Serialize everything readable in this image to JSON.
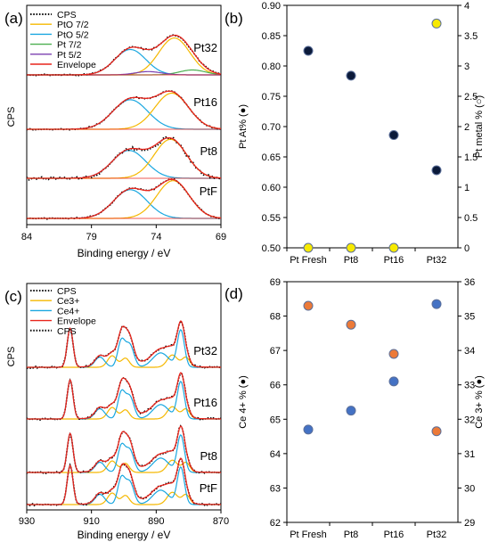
{
  "chart_data": [
    {
      "id": "a",
      "type": "line",
      "panel_label": "(a)",
      "xlabel": "Binding energy / eV",
      "ylabel": "CPS",
      "x_ticks": [
        "84",
        "79",
        "74",
        "69"
      ],
      "x_tick_values": [
        84,
        79,
        74,
        69
      ],
      "xlim": [
        84,
        69
      ],
      "legend": {
        "placement": "top-left",
        "entries": [
          {
            "name": "CPS",
            "color": "#000000",
            "style": "dotted"
          },
          {
            "name": "PtO 7/2",
            "color": "#f5b800",
            "style": "solid"
          },
          {
            "name": "PtO 5/2",
            "color": "#1aa7e0",
            "style": "solid"
          },
          {
            "name": "Pt 7/2",
            "color": "#4caf50",
            "style": "solid"
          },
          {
            "name": "Pt 5/2",
            "color": "#7b3fb0",
            "style": "solid"
          },
          {
            "name": "Envelope",
            "color": "#e8251c",
            "style": "solid"
          }
        ]
      },
      "spectra": [
        {
          "label": "Pt32",
          "peaks": [
            {
              "center": 76.0,
              "width": 1.2,
              "height": 0.62,
              "color": "#1aa7e0"
            },
            {
              "center": 72.6,
              "width": 1.2,
              "height": 0.9,
              "color": "#f5b800"
            },
            {
              "center": 71.2,
              "width": 1.0,
              "height": 0.12,
              "color": "#4caf50"
            },
            {
              "center": 74.6,
              "width": 1.0,
              "height": 0.08,
              "color": "#7b3fb0"
            }
          ]
        },
        {
          "label": "Pt16",
          "peaks": [
            {
              "center": 76.0,
              "width": 1.35,
              "height": 0.72,
              "color": "#1aa7e0"
            },
            {
              "center": 72.8,
              "width": 1.3,
              "height": 0.88,
              "color": "#f5b800"
            }
          ]
        },
        {
          "label": "Pt8",
          "peaks": [
            {
              "center": 76.1,
              "width": 1.3,
              "height": 0.68,
              "color": "#1aa7e0"
            },
            {
              "center": 72.9,
              "width": 1.25,
              "height": 0.95,
              "color": "#f5b800"
            }
          ]
        },
        {
          "label": "PtF",
          "peaks": [
            {
              "center": 76.0,
              "width": 1.3,
              "height": 0.7,
              "color": "#1aa7e0"
            },
            {
              "center": 72.7,
              "width": 1.25,
              "height": 0.92,
              "color": "#f5b800"
            }
          ]
        }
      ]
    },
    {
      "id": "b",
      "type": "scatter",
      "panel_label": "(b)",
      "categories": [
        "Pt Fresh",
        "Pt8",
        "Pt16",
        "Pt32"
      ],
      "ylabel": "Pt At% (●)",
      "y2label": "Pt metal % (○)",
      "ylim": [
        0.5,
        0.9
      ],
      "y_ticks": [
        "0.50",
        "0.55",
        "0.60",
        "0.65",
        "0.70",
        "0.75",
        "0.80",
        "0.85",
        "0.90"
      ],
      "y2lim": [
        0,
        4
      ],
      "y2_ticks": [
        "0",
        "0.5",
        "1",
        "1.5",
        "2",
        "2.5",
        "3",
        "3.5",
        "4"
      ],
      "series": [
        {
          "name": "Pt At%",
          "axis": "left",
          "color": "#0b1a3a",
          "values": [
            0.825,
            0.784,
            0.686,
            0.628
          ]
        },
        {
          "name": "Pt metal %",
          "axis": "right",
          "color": "#f7ea00",
          "values": [
            0,
            0,
            0,
            3.7
          ]
        }
      ]
    },
    {
      "id": "c",
      "type": "line",
      "panel_label": "(c)",
      "xlabel": "Binding energy / eV",
      "ylabel": "CPS",
      "x_ticks": [
        "930",
        "910",
        "890",
        "870"
      ],
      "x_tick_values": [
        930,
        910,
        890,
        870
      ],
      "xlim": [
        930,
        870
      ],
      "legend": {
        "placement": "top-left",
        "entries": [
          {
            "name": "CPS",
            "color": "#000000",
            "style": "dotted"
          },
          {
            "name": "Ce3+",
            "color": "#f5b800",
            "style": "solid"
          },
          {
            "name": "Ce4+",
            "color": "#1aa7e0",
            "style": "solid"
          },
          {
            "name": "Envelope",
            "color": "#e8251c",
            "style": "solid"
          },
          {
            "name": "CPS",
            "color": "#000000",
            "style": "dotted"
          }
        ]
      },
      "spectra": [
        {
          "label": "Pt32"
        },
        {
          "label": "Pt16"
        },
        {
          "label": "Pt8"
        },
        {
          "label": "PtF"
        }
      ]
    },
    {
      "id": "d",
      "type": "scatter",
      "panel_label": "(d)",
      "categories": [
        "Pt Fresh",
        "Pt8",
        "Pt16",
        "Pt32"
      ],
      "ylabel": "Ce 4+ % (●)",
      "y2label": "Ce 3+ % (●)",
      "ylim": [
        62,
        69
      ],
      "y_ticks": [
        "62",
        "63",
        "64",
        "65",
        "66",
        "67",
        "68",
        "69"
      ],
      "y2lim": [
        29,
        36
      ],
      "y2_ticks": [
        "29",
        "30",
        "31",
        "32",
        "33",
        "34",
        "35",
        "36"
      ],
      "series": [
        {
          "name": "Ce 4+ %",
          "axis": "left",
          "color": "#ec7a38",
          "values": [
            68.3,
            67.75,
            66.9,
            64.65
          ]
        },
        {
          "name": "Ce 3+ %",
          "axis": "right",
          "color": "#4472c4",
          "values": [
            31.7,
            32.25,
            33.1,
            35.35
          ]
        }
      ]
    }
  ]
}
